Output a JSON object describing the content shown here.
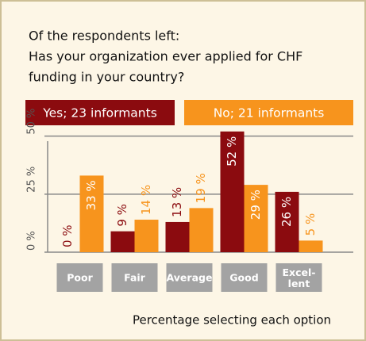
{
  "chart_data": {
    "type": "bar",
    "title": [
      "Of the respondents left:",
      "Has your organization ever applied for CHF",
      "funding in your country?"
    ],
    "xlabel": "Percentage selecting each option",
    "categories": [
      "Poor",
      "Fair",
      "Average",
      "Good",
      "Excel-\nlent"
    ],
    "series": [
      {
        "name": "Yes; 23 informants",
        "color": "#8b0b0f",
        "values": [
          0,
          9,
          13,
          52,
          26
        ],
        "value_labels": [
          "0 %",
          "9 %",
          "13 %",
          "52 %",
          "26 %"
        ]
      },
      {
        "name": "No; 21 informants",
        "color": "#f7941d",
        "values": [
          33,
          14,
          19,
          29,
          5
        ],
        "value_labels": [
          "33 %",
          "14 %",
          "19 %",
          "29 %",
          "5 %"
        ]
      }
    ],
    "ylim": [
      0,
      55
    ],
    "yticks": [
      {
        "value": 0,
        "label": "0 %"
      },
      {
        "value": 25,
        "label": "25 %"
      },
      {
        "value": 50,
        "label": "50 %"
      }
    ],
    "grid": true
  }
}
